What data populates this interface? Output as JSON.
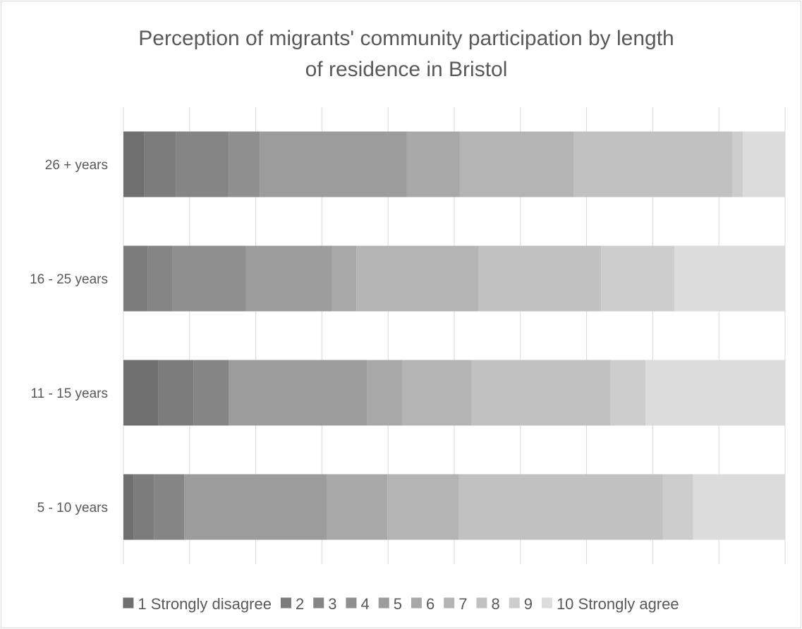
{
  "chart_data": {
    "type": "bar",
    "orientation": "horizontal",
    "stacked": "percent",
    "title": "Perception of migrants' community participation by length of residence in Bristol",
    "title_lines": [
      "Perception of migrants' community participation by length",
      "of residence in Bristol"
    ],
    "categories": [
      "26 + years",
      "16 - 25 years",
      "11 - 15  years",
      "5 - 10 years"
    ],
    "xlim": [
      0,
      100
    ],
    "grid": true,
    "legend_position": "bottom",
    "series": [
      {
        "name": "1 Strongly disagree",
        "color": "#6f6f6f",
        "values": [
          3.1,
          0.0,
          5.3,
          1.5
        ]
      },
      {
        "name": "2",
        "color": "#7c7c7c",
        "values": [
          4.8,
          3.7,
          5.3,
          3.1
        ]
      },
      {
        "name": "3",
        "color": "#858585",
        "values": [
          8.0,
          3.7,
          5.3,
          4.6
        ]
      },
      {
        "name": "4",
        "color": "#8f8f8f",
        "values": [
          4.7,
          11.1,
          0.0,
          0.0
        ]
      },
      {
        "name": "5",
        "color": "#9c9c9c",
        "values": [
          22.2,
          13.0,
          21.0,
          21.5
        ]
      },
      {
        "name": "6",
        "color": "#a8a8a8",
        "values": [
          8.0,
          3.7,
          5.3,
          9.2
        ]
      },
      {
        "name": "7",
        "color": "#b4b4b4",
        "values": [
          17.3,
          18.5,
          10.5,
          10.8
        ]
      },
      {
        "name": "8",
        "color": "#c1c1c1",
        "values": [
          23.9,
          18.5,
          21.0,
          30.8
        ]
      },
      {
        "name": "9",
        "color": "#cdcdcd",
        "values": [
          1.6,
          11.1,
          5.3,
          4.6
        ]
      },
      {
        "name": "10 Strongly agree",
        "color": "#dcdcdc",
        "values": [
          6.4,
          16.7,
          21.1,
          13.9
        ]
      }
    ]
  }
}
